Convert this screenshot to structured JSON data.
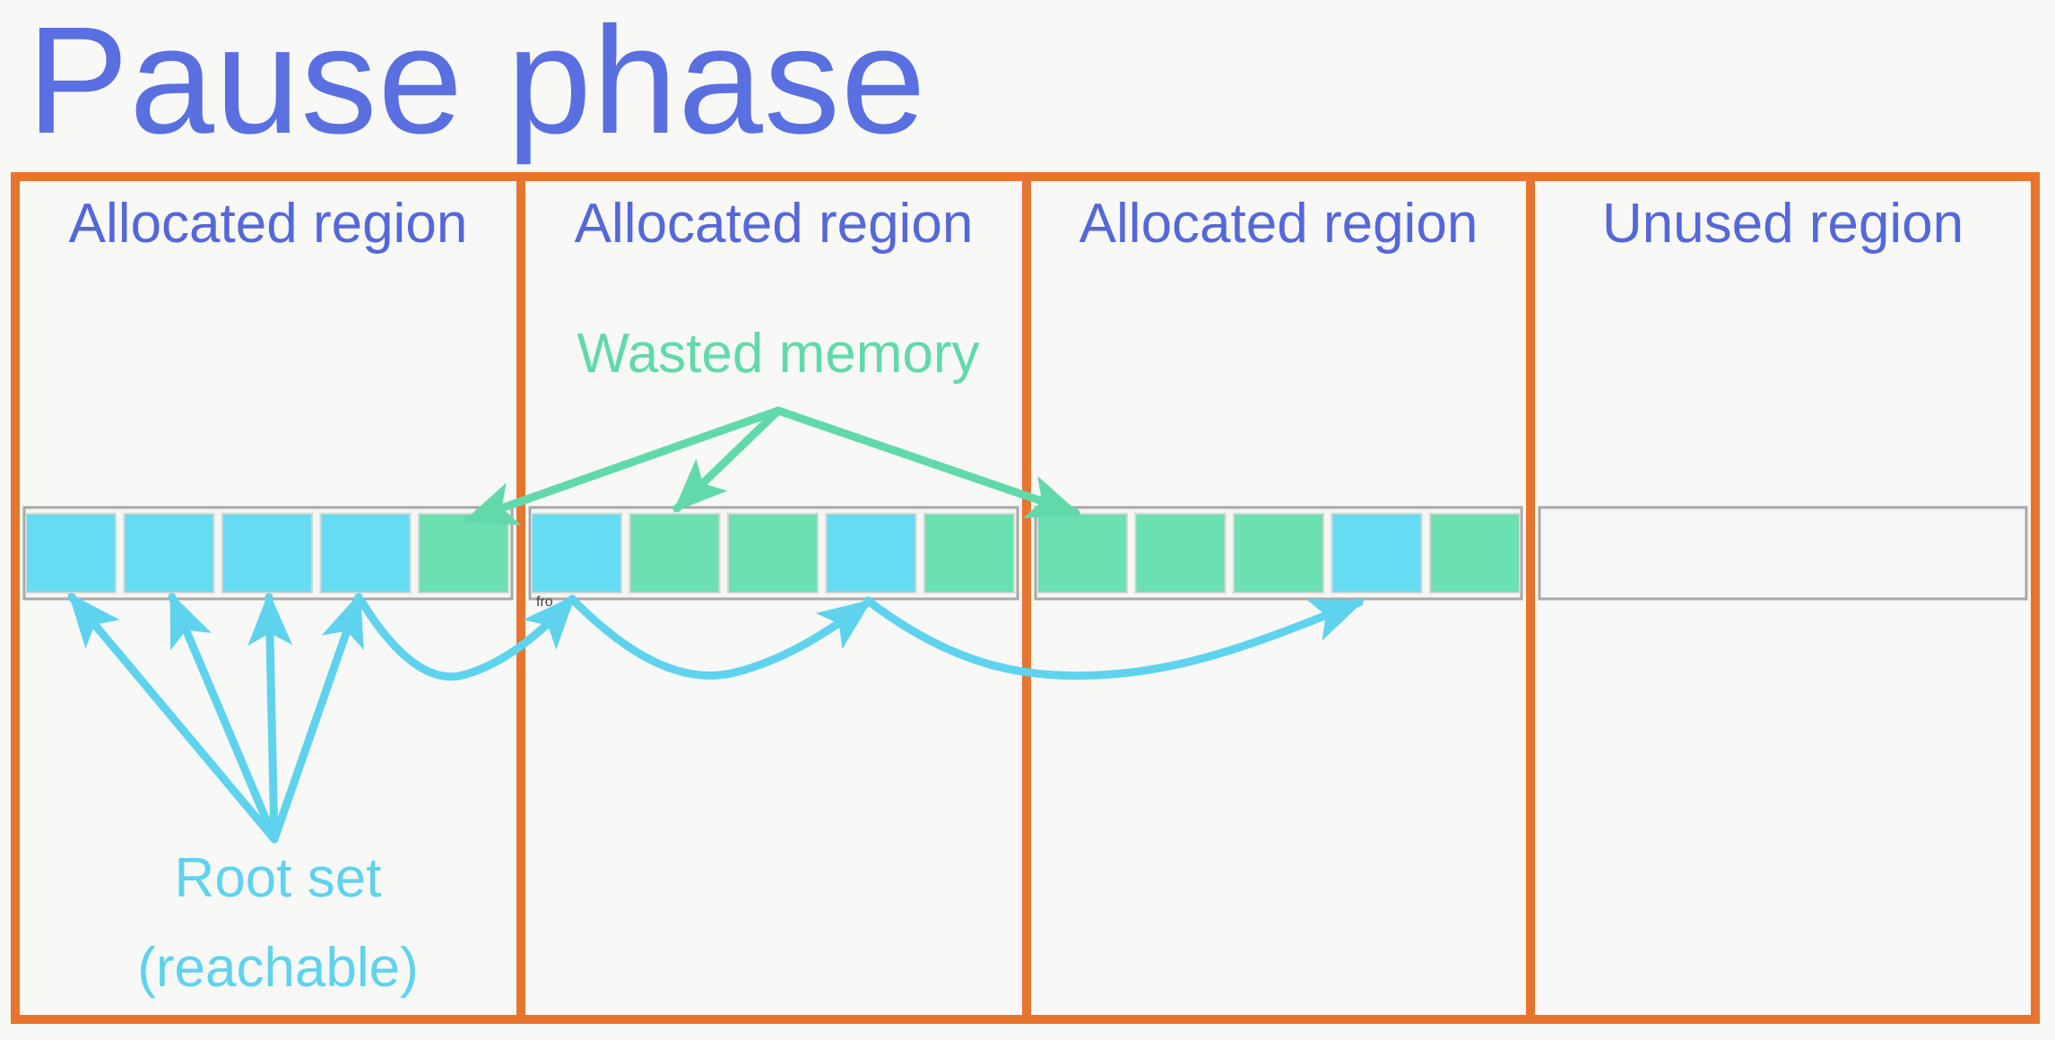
{
  "title": "Pause phase",
  "regions": [
    {
      "label": "Allocated region",
      "type": "allocated"
    },
    {
      "label": "Allocated region",
      "type": "allocated"
    },
    {
      "label": "Allocated region",
      "type": "allocated"
    },
    {
      "label": "Unused region",
      "type": "unused"
    }
  ],
  "memory_cells": [
    [
      "live",
      "live",
      "live",
      "live",
      "wasted"
    ],
    [
      "live",
      "wasted",
      "wasted",
      "live",
      "wasted"
    ],
    [
      "wasted",
      "wasted",
      "wasted",
      "live",
      "wasted"
    ],
    []
  ],
  "annotations": {
    "wasted": "Wasted memory",
    "root_line1": "Root set",
    "root_line2": "(reachable)",
    "tiny": "fro"
  },
  "colors": {
    "region_border": "#e8742d",
    "live": "#66dcf3",
    "wasted": "#6ce0b0",
    "live_arrow": "#5fd3ee",
    "wasted_arrow": "#62d9ab",
    "text": "#5567da"
  }
}
